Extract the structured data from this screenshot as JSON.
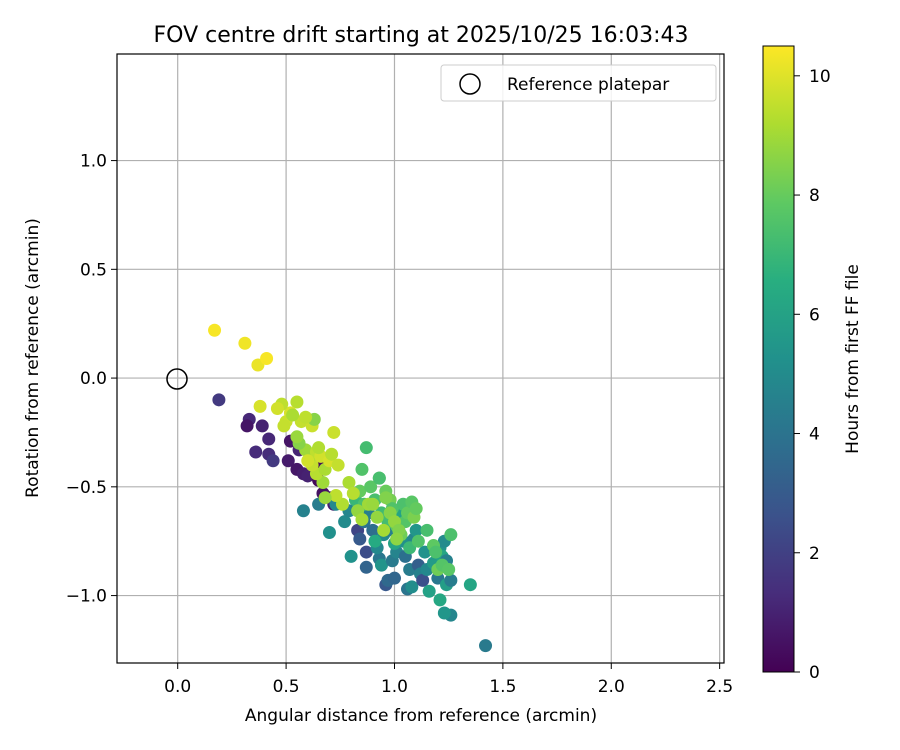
{
  "chart_data": {
    "type": "scatter",
    "title": "FOV centre drift starting at 2025/10/25 16:03:43",
    "xlabel": "Angular distance from reference (arcmin)",
    "ylabel": "Rotation from reference (arcmin)",
    "xlim": [
      -0.28,
      2.52
    ],
    "ylim": [
      -1.31,
      1.49
    ],
    "xticks": [
      0.0,
      0.5,
      1.0,
      1.5,
      2.0,
      2.5
    ],
    "xtick_labels": [
      "0.0",
      "0.5",
      "1.0",
      "1.5",
      "2.0",
      "2.5"
    ],
    "yticks": [
      -1.0,
      -0.5,
      0.0,
      0.5,
      1.0
    ],
    "ytick_labels": [
      "−1.0",
      "−0.5",
      "0.0",
      "0.5",
      "1.0"
    ],
    "grid": true,
    "legend": {
      "placement": "top-right",
      "entries": [
        "Reference platepar"
      ]
    },
    "reference_point": {
      "x": 0.0,
      "y": 0.0,
      "label": "Reference platepar"
    },
    "colorbar": {
      "label": "Hours from first FF file",
      "min": 0,
      "max": 10.5,
      "ticks": [
        0,
        2,
        4,
        6,
        8,
        10
      ],
      "tick_labels": [
        "0",
        "2",
        "4",
        "6",
        "8",
        "10"
      ],
      "colormap": "viridis"
    },
    "points_columns": [
      "x",
      "y",
      "hours"
    ],
    "points": [
      [
        0.19,
        -0.1,
        1.8
      ],
      [
        0.33,
        -0.19,
        1.2
      ],
      [
        0.32,
        -0.22,
        0.6
      ],
      [
        0.39,
        -0.22,
        1.0
      ],
      [
        0.36,
        -0.34,
        1.3
      ],
      [
        0.42,
        -0.28,
        1.2
      ],
      [
        0.42,
        -0.35,
        1.4
      ],
      [
        0.44,
        -0.38,
        1.8
      ],
      [
        0.52,
        -0.29,
        0.6
      ],
      [
        0.51,
        -0.38,
        0.8
      ],
      [
        0.55,
        -0.42,
        0.7
      ],
      [
        0.58,
        -0.44,
        0.9
      ],
      [
        0.6,
        -0.45,
        1.0
      ],
      [
        0.56,
        -0.33,
        1.1
      ],
      [
        0.65,
        -0.47,
        0.2
      ],
      [
        0.67,
        -0.53,
        0.5
      ],
      [
        0.7,
        -0.55,
        0.8
      ],
      [
        0.66,
        -0.4,
        0.3
      ],
      [
        0.72,
        -0.58,
        0.9
      ],
      [
        0.58,
        -0.61,
        4.6
      ],
      [
        0.65,
        -0.58,
        4.4
      ],
      [
        0.7,
        -0.71,
        5.2
      ],
      [
        0.73,
        -0.58,
        4.9
      ],
      [
        0.77,
        -0.66,
        5.0
      ],
      [
        0.79,
        -0.61,
        4.8
      ],
      [
        0.8,
        -0.82,
        5.3
      ],
      [
        0.83,
        -0.7,
        2.2
      ],
      [
        0.84,
        -0.74,
        3.0
      ],
      [
        0.87,
        -0.8,
        2.5
      ],
      [
        0.86,
        -0.66,
        4.0
      ],
      [
        0.87,
        -0.87,
        3.4
      ],
      [
        0.88,
        -0.62,
        4.5
      ],
      [
        0.9,
        -0.7,
        3.8
      ],
      [
        0.93,
        -0.83,
        4.2
      ],
      [
        0.92,
        -0.78,
        4.9
      ],
      [
        0.94,
        -0.86,
        5.4
      ],
      [
        0.95,
        -0.72,
        5.0
      ],
      [
        0.96,
        -0.95,
        2.9
      ],
      [
        0.97,
        -0.93,
        3.6
      ],
      [
        0.98,
        -0.68,
        5.6
      ],
      [
        0.99,
        -0.84,
        4.3
      ],
      [
        1.0,
        -0.92,
        3.5
      ],
      [
        1.01,
        -0.8,
        4.7
      ],
      [
        1.02,
        -0.7,
        5.8
      ],
      [
        1.03,
        -0.63,
        6.1
      ],
      [
        1.04,
        -0.75,
        5.2
      ],
      [
        1.05,
        -0.82,
        3.9
      ],
      [
        1.06,
        -0.97,
        4.1
      ],
      [
        1.07,
        -0.88,
        4.4
      ],
      [
        1.08,
        -0.96,
        5.1
      ],
      [
        1.09,
        -0.74,
        4.8
      ],
      [
        1.1,
        -0.7,
        5.5
      ],
      [
        1.11,
        -0.86,
        3.2
      ],
      [
        1.12,
        -0.9,
        4.6
      ],
      [
        1.13,
        -0.93,
        2.6
      ],
      [
        1.14,
        -0.8,
        5.3
      ],
      [
        1.15,
        -0.88,
        4.9
      ],
      [
        1.16,
        -0.98,
        6.0
      ],
      [
        1.18,
        -0.85,
        5.7
      ],
      [
        1.2,
        -0.92,
        4.2
      ],
      [
        1.21,
        -0.78,
        5.4
      ],
      [
        1.22,
        -0.82,
        6.2
      ],
      [
        1.23,
        -0.75,
        5.0
      ],
      [
        1.24,
        -0.84,
        4.6
      ],
      [
        1.24,
        -0.95,
        5.8
      ],
      [
        1.26,
        -0.93,
        4.4
      ],
      [
        1.26,
        -1.09,
        4.8
      ],
      [
        1.23,
        -1.08,
        5.5
      ],
      [
        1.21,
        -1.02,
        6.3
      ],
      [
        1.35,
        -0.95,
        6.2
      ],
      [
        1.42,
        -1.23,
        4.3
      ],
      [
        0.97,
        -0.7,
        4.5
      ],
      [
        1.05,
        -0.65,
        5.9
      ],
      [
        1.0,
        -0.76,
        6.1
      ],
      [
        0.91,
        -0.75,
        6.4
      ],
      [
        0.82,
        -0.56,
        7.0
      ],
      [
        0.84,
        -0.52,
        8.0
      ],
      [
        0.86,
        -0.58,
        7.5
      ],
      [
        0.89,
        -0.5,
        7.8
      ],
      [
        0.91,
        -0.56,
        7.4
      ],
      [
        0.93,
        -0.46,
        7.7
      ],
      [
        0.94,
        -0.62,
        7.2
      ],
      [
        0.96,
        -0.52,
        8.1
      ],
      [
        0.97,
        -0.66,
        7.3
      ],
      [
        0.98,
        -0.56,
        8.3
      ],
      [
        0.99,
        -0.6,
        7.6
      ],
      [
        1.01,
        -0.68,
        7.9
      ],
      [
        1.03,
        -0.72,
        8.2
      ],
      [
        1.04,
        -0.58,
        7.5
      ],
      [
        1.05,
        -0.66,
        7.7
      ],
      [
        1.06,
        -0.62,
        8.0
      ],
      [
        1.07,
        -0.78,
        7.1
      ],
      [
        1.08,
        -0.57,
        7.8
      ],
      [
        1.09,
        -0.64,
        8.4
      ],
      [
        1.1,
        -0.6,
        8.0
      ],
      [
        1.11,
        -0.75,
        7.6
      ],
      [
        1.15,
        -0.7,
        7.4
      ],
      [
        1.18,
        -0.77,
        7.9
      ],
      [
        1.19,
        -0.8,
        7.5
      ],
      [
        1.2,
        -0.88,
        8.2
      ],
      [
        1.22,
        -0.86,
        7.7
      ],
      [
        1.25,
        -0.88,
        7.8
      ],
      [
        1.26,
        -0.72,
        7.5
      ],
      [
        0.87,
        -0.32,
        7.3
      ],
      [
        0.85,
        -0.42,
        7.6
      ],
      [
        0.93,
        -0.46,
        7.4
      ],
      [
        0.96,
        -0.55,
        8.5
      ],
      [
        0.98,
        -0.62,
        8.6
      ],
      [
        1.0,
        -0.66,
        8.8
      ],
      [
        1.02,
        -0.7,
        8.5
      ],
      [
        0.88,
        -0.58,
        9.0
      ],
      [
        0.92,
        -0.64,
        8.8
      ],
      [
        0.95,
        -0.7,
        9.1
      ],
      [
        1.01,
        -0.74,
        8.7
      ],
      [
        0.9,
        -0.58,
        8.9
      ],
      [
        0.79,
        -0.48,
        9.2
      ],
      [
        0.81,
        -0.53,
        9.4
      ],
      [
        0.83,
        -0.61,
        8.8
      ],
      [
        0.85,
        -0.65,
        9.1
      ],
      [
        0.76,
        -0.58,
        9.3
      ],
      [
        0.73,
        -0.54,
        9.5
      ],
      [
        0.68,
        -0.55,
        8.9
      ],
      [
        0.67,
        -0.48,
        9.0
      ],
      [
        0.64,
        -0.44,
        9.4
      ],
      [
        0.62,
        -0.4,
        9.6
      ],
      [
        0.61,
        -0.36,
        9.3
      ],
      [
        0.59,
        -0.33,
        9.0
      ],
      [
        0.56,
        -0.3,
        8.6
      ],
      [
        0.55,
        -0.27,
        8.9
      ],
      [
        0.57,
        -0.2,
        9.6
      ],
      [
        0.62,
        -0.22,
        9.7
      ],
      [
        0.63,
        -0.19,
        8.6
      ],
      [
        0.64,
        -0.34,
        9.5
      ],
      [
        0.66,
        -0.36,
        9.8
      ],
      [
        0.68,
        -0.42,
        9.2
      ],
      [
        0.7,
        -0.38,
        9.9
      ],
      [
        0.71,
        -0.35,
        9.4
      ],
      [
        0.72,
        -0.25,
        9.7
      ],
      [
        0.65,
        -0.32,
        9.3
      ],
      [
        0.59,
        -0.18,
        9.5
      ],
      [
        0.55,
        -0.11,
        9.4
      ],
      [
        0.52,
        -0.16,
        9.9
      ],
      [
        0.5,
        -0.2,
        9.7
      ],
      [
        0.48,
        -0.12,
        9.5
      ],
      [
        0.46,
        -0.14,
        9.8
      ],
      [
        0.38,
        -0.13,
        9.9
      ],
      [
        0.49,
        -0.22,
        9.6
      ],
      [
        0.53,
        -0.17,
        9.2
      ],
      [
        0.6,
        -0.38,
        9.8
      ],
      [
        0.74,
        -0.4,
        9.6
      ],
      [
        0.17,
        0.22,
        10.4
      ],
      [
        0.31,
        0.16,
        10.3
      ],
      [
        0.37,
        0.06,
        10.2
      ],
      [
        0.41,
        0.09,
        10.4
      ]
    ]
  }
}
